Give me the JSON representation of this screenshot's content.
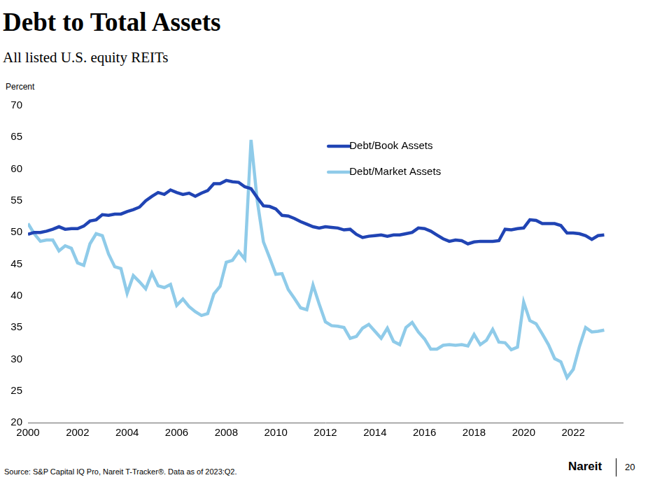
{
  "chart_data": {
    "type": "line",
    "title": "Debt to Total Assets",
    "subtitle": "All listed U.S. equity REITs",
    "y_label": "Percent",
    "source": "Source: S&P Capital IQ Pro, Nareit T-Tracker®. Data as of 2023:Q2.",
    "logo": "Nareit",
    "page_number": 20,
    "x": [
      2000,
      2000.25,
      2000.5,
      2000.75,
      2001,
      2001.25,
      2001.5,
      2001.75,
      2002,
      2002.25,
      2002.5,
      2002.75,
      2003,
      2003.25,
      2003.5,
      2003.75,
      2004,
      2004.25,
      2004.5,
      2004.75,
      2005,
      2005.25,
      2005.5,
      2005.75,
      2006,
      2006.25,
      2006.5,
      2006.75,
      2007,
      2007.25,
      2007.5,
      2007.75,
      2008,
      2008.25,
      2008.5,
      2008.75,
      2009,
      2009.25,
      2009.5,
      2009.75,
      2010,
      2010.25,
      2010.5,
      2010.75,
      2011,
      2011.25,
      2011.5,
      2011.75,
      2012,
      2012.25,
      2012.5,
      2012.75,
      2013,
      2013.25,
      2013.5,
      2013.75,
      2014,
      2014.25,
      2014.5,
      2014.75,
      2015,
      2015.25,
      2015.5,
      2015.75,
      2016,
      2016.25,
      2016.5,
      2016.75,
      2017,
      2017.25,
      2017.5,
      2017.75,
      2018,
      2018.25,
      2018.5,
      2018.75,
      2019,
      2019.25,
      2019.5,
      2019.75,
      2020,
      2020.25,
      2020.5,
      2020.75,
      2021,
      2021.25,
      2021.5,
      2021.75,
      2022,
      2022.25,
      2022.5,
      2022.75,
      2023,
      2023.25
    ],
    "series": [
      {
        "name": "Debt/Book Assets",
        "color": "#2044b4",
        "values": [
          49.7,
          50.0,
          50.0,
          50.2,
          50.5,
          50.9,
          50.5,
          50.6,
          50.6,
          51.0,
          51.8,
          52.0,
          52.8,
          52.7,
          52.9,
          52.9,
          53.3,
          53.6,
          54.0,
          55.0,
          55.7,
          56.3,
          56.0,
          56.7,
          56.3,
          56.0,
          56.2,
          55.7,
          56.2,
          56.6,
          57.7,
          57.7,
          58.2,
          58.0,
          57.9,
          57.2,
          56.9,
          55.5,
          54.2,
          54.1,
          53.7,
          52.7,
          52.6,
          52.2,
          51.7,
          51.3,
          50.9,
          50.7,
          50.9,
          50.8,
          50.7,
          50.4,
          50.5,
          49.7,
          49.2,
          49.4,
          49.5,
          49.6,
          49.4,
          49.6,
          49.6,
          49.8,
          50.0,
          50.7,
          50.6,
          50.2,
          49.6,
          49.0,
          48.6,
          48.8,
          48.7,
          48.2,
          48.5,
          48.6,
          48.6,
          48.6,
          48.7,
          50.5,
          50.4,
          50.6,
          50.7,
          52.0,
          51.9,
          51.4,
          51.4,
          51.4,
          51.1,
          49.9,
          49.9,
          49.8,
          49.5,
          48.9,
          49.5,
          49.6
        ]
      },
      {
        "name": "Debt/Market Assets",
        "color": "#8fcbe9",
        "values": [
          51.4,
          49.8,
          48.6,
          48.8,
          48.8,
          47.1,
          47.9,
          47.5,
          45.2,
          44.8,
          48.2,
          49.8,
          49.5,
          46.6,
          44.6,
          44.3,
          40.4,
          43.2,
          42.2,
          41.1,
          43.6,
          41.6,
          41.3,
          41.8,
          38.5,
          39.5,
          38.3,
          37.5,
          36.9,
          37.2,
          40.3,
          41.5,
          45.3,
          45.6,
          47.0,
          45.8,
          64.6,
          55.0,
          48.5,
          46.0,
          43.4,
          43.5,
          41.0,
          39.6,
          38.1,
          37.8,
          41.7,
          38.7,
          35.9,
          35.3,
          35.2,
          35.0,
          33.3,
          33.6,
          34.9,
          35.5,
          34.4,
          33.3,
          34.9,
          32.8,
          32.3,
          35.0,
          35.8,
          34.3,
          33.2,
          31.6,
          31.6,
          32.2,
          32.3,
          32.2,
          32.3,
          32.1,
          33.9,
          32.3,
          33.0,
          34.7,
          32.7,
          32.6,
          31.5,
          31.9,
          39.0,
          36.1,
          35.6,
          34.0,
          32.3,
          30.1,
          29.6,
          27.1,
          28.4,
          32.0,
          35.0,
          34.3,
          34.4,
          34.6
        ]
      }
    ],
    "xlim": [
      2000,
      2024
    ],
    "xticks": [
      2000,
      2002,
      2004,
      2006,
      2008,
      2010,
      2012,
      2014,
      2016,
      2018,
      2020,
      2022
    ],
    "ylim": [
      20,
      70
    ],
    "yticks": [
      20,
      25,
      30,
      35,
      40,
      45,
      50,
      55,
      60,
      65,
      70
    ],
    "grid": false,
    "legend": "top"
  }
}
